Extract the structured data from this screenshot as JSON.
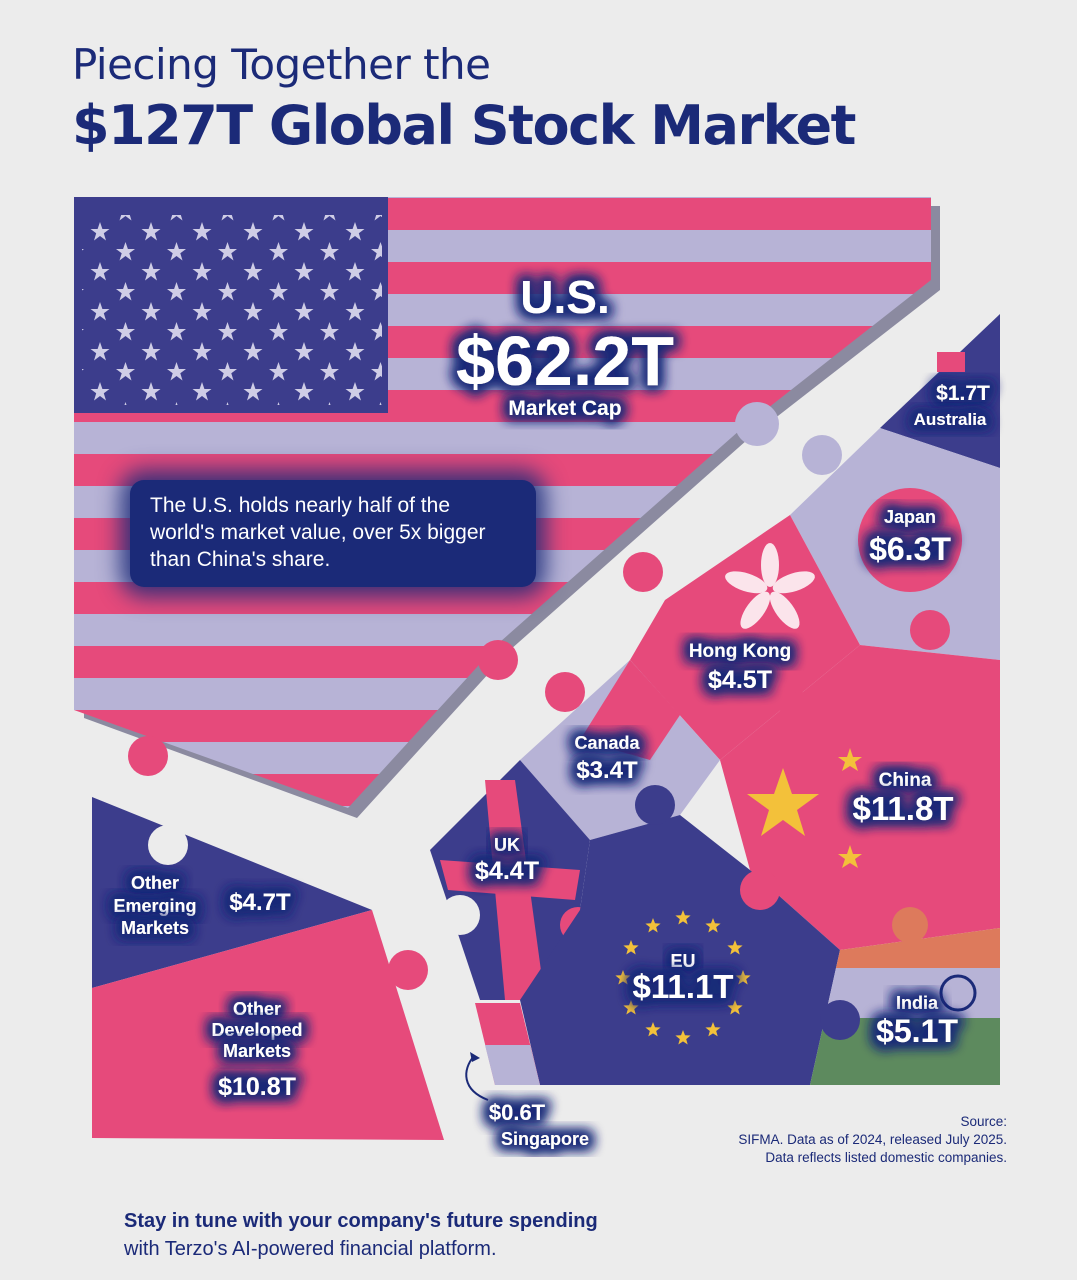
{
  "header": {
    "line1": "Piecing Together the",
    "line2": "$127T Global Stock Market"
  },
  "note": "The U.S. holds nearly half of the world's market value, over 5x bigger than China's share.",
  "source": {
    "line1": "Source:",
    "line2": "SIFMA. Data as of 2024, released July 2025.",
    "line3": "Data reflects listed domestic companies."
  },
  "cta": {
    "line1": "Stay in tune with your company's future spending",
    "line2": "with Terzo's AI-powered financial platform."
  },
  "colors": {
    "navy": "#1b2a78",
    "pink": "#e64a7b",
    "lavender": "#b7b3d6",
    "background": "#ececec"
  },
  "chart_data": {
    "type": "treemap",
    "title": "$127T Global Stock Market",
    "unit": "$T market cap",
    "categories": [
      "U.S.",
      "China",
      "EU",
      "Other Developed Markets",
      "Japan",
      "India",
      "Other Emerging Markets",
      "Hong Kong",
      "UK",
      "Canada",
      "Australia",
      "Singapore"
    ],
    "values": [
      62.2,
      11.8,
      11.1,
      10.8,
      6.3,
      5.1,
      4.7,
      4.5,
      4.4,
      3.4,
      1.7,
      0.6
    ],
    "value_labels": [
      "$62.2T",
      "$11.8T",
      "$11.1T",
      "$10.8T",
      "$6.3T",
      "$5.1T",
      "$4.7T",
      "$4.5T",
      "$4.4T",
      "$3.4T",
      "$1.7T",
      "$0.6T"
    ],
    "us_caption": "Market Cap",
    "other_labels": {
      "emerging": [
        "Other",
        "Emerging",
        "Markets"
      ],
      "developed": [
        "Other",
        "Developed",
        "Markets"
      ]
    }
  }
}
